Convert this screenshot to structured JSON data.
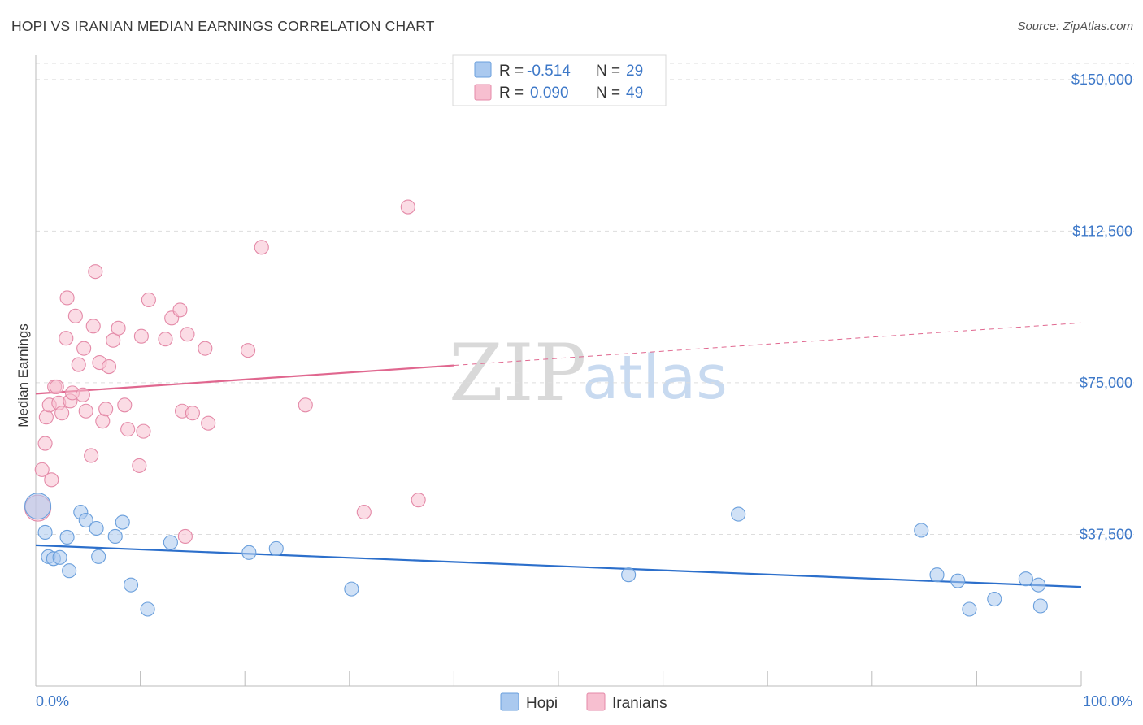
{
  "title": "HOPI VS IRANIAN MEDIAN EARNINGS CORRELATION CHART",
  "source": "Source: ZipAtlas.com",
  "watermark": {
    "zip": "ZIP",
    "atlas": "atlas"
  },
  "colors": {
    "hopi_fill": "#aac9ef",
    "hopi_stroke": "#6a9fdc",
    "hopi_line": "#2c6fcb",
    "iran_fill": "#f7bfd0",
    "iran_stroke": "#e48aa8",
    "iran_line": "#e0678f",
    "grid": "#dddddd",
    "tick_text": "#3d78c8"
  },
  "legend": {
    "rows": [
      {
        "r_label": "R =",
        "r_value": "-0.514",
        "n_label": "N =",
        "n_value": "29"
      },
      {
        "r_label": "R =",
        "r_value": "0.090",
        "n_label": "N =",
        "n_value": "49"
      }
    ]
  },
  "bottom_legend": [
    "Hopi",
    "Iranians"
  ],
  "chart_data": {
    "type": "scatter",
    "title": "HOPI VS IRANIAN MEDIAN EARNINGS CORRELATION CHART",
    "xlabel": "",
    "ylabel": "Median Earnings",
    "xlim": [
      0,
      100
    ],
    "ylim": [
      0,
      155000
    ],
    "x_tick_labels": [
      "0.0%",
      "100.0%"
    ],
    "y_ticks": [
      37500,
      75000,
      112500,
      150000
    ],
    "y_tick_labels": [
      "$37,500",
      "$75,000",
      "$112,500",
      "$150,000"
    ],
    "grid": "horizontal dashed",
    "legend_position": "top-center",
    "series": [
      {
        "name": "Hopi",
        "r": -0.514,
        "n": 29,
        "trend": {
          "x": [
            0,
            100
          ],
          "y": [
            34800,
            24500
          ],
          "style": "solid"
        },
        "points": [
          {
            "x": 0.2,
            "y": 44500,
            "big": true
          },
          {
            "x": 0.9,
            "y": 38000
          },
          {
            "x": 1.2,
            "y": 32000
          },
          {
            "x": 1.7,
            "y": 31500
          },
          {
            "x": 2.3,
            "y": 31800
          },
          {
            "x": 3.0,
            "y": 36800
          },
          {
            "x": 3.2,
            "y": 28500
          },
          {
            "x": 4.3,
            "y": 43000
          },
          {
            "x": 4.8,
            "y": 41000
          },
          {
            "x": 5.8,
            "y": 39000
          },
          {
            "x": 6.0,
            "y": 32000
          },
          {
            "x": 7.6,
            "y": 37000
          },
          {
            "x": 8.3,
            "y": 40500
          },
          {
            "x": 9.1,
            "y": 25000
          },
          {
            "x": 10.7,
            "y": 19000
          },
          {
            "x": 12.9,
            "y": 35500
          },
          {
            "x": 20.4,
            "y": 33000
          },
          {
            "x": 23.0,
            "y": 34000
          },
          {
            "x": 30.2,
            "y": 24000
          },
          {
            "x": 56.7,
            "y": 27500
          },
          {
            "x": 67.2,
            "y": 42500
          },
          {
            "x": 84.7,
            "y": 38500
          },
          {
            "x": 86.2,
            "y": 27500
          },
          {
            "x": 88.2,
            "y": 26000
          },
          {
            "x": 89.3,
            "y": 19000
          },
          {
            "x": 91.7,
            "y": 21500
          },
          {
            "x": 94.7,
            "y": 26500
          },
          {
            "x": 95.9,
            "y": 25000
          },
          {
            "x": 96.1,
            "y": 19800
          }
        ]
      },
      {
        "name": "Iranians",
        "r": 0.09,
        "n": 49,
        "trend": {
          "x": [
            0,
            40,
            100
          ],
          "y": [
            72300,
            79300,
            89800
          ],
          "style": "solid-then-dashed",
          "solid_until": 40
        },
        "points": [
          {
            "x": 0.2,
            "y": 44000,
            "big": true
          },
          {
            "x": 0.6,
            "y": 53500
          },
          {
            "x": 0.9,
            "y": 60000
          },
          {
            "x": 1.0,
            "y": 66500
          },
          {
            "x": 1.3,
            "y": 69500
          },
          {
            "x": 1.5,
            "y": 51000
          },
          {
            "x": 1.8,
            "y": 74000
          },
          {
            "x": 2.0,
            "y": 74000
          },
          {
            "x": 2.2,
            "y": 70000
          },
          {
            "x": 2.5,
            "y": 67500
          },
          {
            "x": 2.9,
            "y": 86000
          },
          {
            "x": 3.0,
            "y": 96000
          },
          {
            "x": 3.3,
            "y": 70500
          },
          {
            "x": 3.5,
            "y": 72500
          },
          {
            "x": 3.8,
            "y": 91500
          },
          {
            "x": 4.1,
            "y": 79500
          },
          {
            "x": 4.5,
            "y": 72000
          },
          {
            "x": 4.6,
            "y": 83500
          },
          {
            "x": 4.8,
            "y": 68000
          },
          {
            "x": 5.3,
            "y": 57000
          },
          {
            "x": 5.5,
            "y": 89000
          },
          {
            "x": 5.7,
            "y": 102500
          },
          {
            "x": 6.1,
            "y": 80000
          },
          {
            "x": 6.4,
            "y": 65500
          },
          {
            "x": 6.7,
            "y": 68500
          },
          {
            "x": 7.0,
            "y": 79000
          },
          {
            "x": 7.4,
            "y": 85500
          },
          {
            "x": 7.9,
            "y": 88500
          },
          {
            "x": 8.5,
            "y": 69500
          },
          {
            "x": 8.8,
            "y": 63500
          },
          {
            "x": 9.9,
            "y": 54500
          },
          {
            "x": 10.1,
            "y": 86500
          },
          {
            "x": 10.3,
            "y": 63000
          },
          {
            "x": 10.8,
            "y": 95500
          },
          {
            "x": 12.4,
            "y": 85800
          },
          {
            "x": 13.0,
            "y": 91000
          },
          {
            "x": 13.8,
            "y": 93000
          },
          {
            "x": 14.0,
            "y": 68000
          },
          {
            "x": 14.3,
            "y": 37000
          },
          {
            "x": 14.5,
            "y": 87000
          },
          {
            "x": 15.0,
            "y": 67500
          },
          {
            "x": 16.2,
            "y": 83500
          },
          {
            "x": 16.5,
            "y": 65000
          },
          {
            "x": 20.3,
            "y": 83000
          },
          {
            "x": 21.6,
            "y": 108500
          },
          {
            "x": 25.8,
            "y": 69500
          },
          {
            "x": 31.4,
            "y": 43000
          },
          {
            "x": 35.6,
            "y": 118500
          },
          {
            "x": 36.6,
            "y": 46000
          }
        ]
      }
    ]
  }
}
